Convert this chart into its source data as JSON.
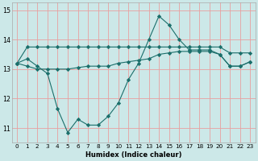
{
  "x": [
    0,
    1,
    2,
    3,
    4,
    5,
    6,
    7,
    8,
    9,
    10,
    11,
    12,
    13,
    14,
    15,
    16,
    17,
    18,
    19,
    20,
    21,
    22,
    23
  ],
  "line1": [
    13.2,
    13.75,
    13.75,
    13.75,
    13.75,
    13.75,
    13.75,
    13.75,
    13.75,
    13.75,
    13.75,
    13.75,
    13.75,
    13.75,
    13.75,
    13.75,
    13.75,
    13.75,
    13.75,
    13.75,
    13.75,
    13.55,
    13.55,
    13.55
  ],
  "line2": [
    13.2,
    13.35,
    13.1,
    12.85,
    11.65,
    10.85,
    11.3,
    11.1,
    11.1,
    11.4,
    11.85,
    12.65,
    13.2,
    14.0,
    14.8,
    14.5,
    14.0,
    13.65,
    13.65,
    13.65,
    13.5,
    13.1,
    13.1,
    13.25
  ],
  "line3": [
    13.2,
    13.1,
    13.0,
    13.0,
    13.0,
    13.0,
    13.05,
    13.1,
    13.1,
    13.1,
    13.2,
    13.25,
    13.3,
    13.35,
    13.5,
    13.55,
    13.6,
    13.6,
    13.6,
    13.6,
    13.5,
    13.1,
    13.1,
    13.25
  ],
  "color": "#1a6e6a",
  "bg_color": "#cce8e8",
  "grid_color": "#e8a0a0",
  "xlabel": "Humidex (Indice chaleur)",
  "ylim": [
    10.5,
    15.25
  ],
  "xlim": [
    -0.5,
    23.5
  ],
  "yticks": [
    11,
    12,
    13,
    14,
    15
  ],
  "xticks": [
    0,
    1,
    2,
    3,
    4,
    5,
    6,
    7,
    8,
    9,
    10,
    11,
    12,
    13,
    14,
    15,
    16,
    17,
    18,
    19,
    20,
    21,
    22,
    23
  ],
  "xtick_labels": [
    "0",
    "1",
    "2",
    "3",
    "4",
    "5",
    "6",
    "7",
    "8",
    "9",
    "10",
    "11",
    "12",
    "13",
    "14",
    "15",
    "16",
    "17",
    "18",
    "19",
    "20",
    "21",
    "22",
    "23"
  ],
  "marker": "D",
  "markersize": 2.2,
  "linewidth": 0.8,
  "xlabel_fontsize": 6.0,
  "tick_fontsize": 5.2
}
